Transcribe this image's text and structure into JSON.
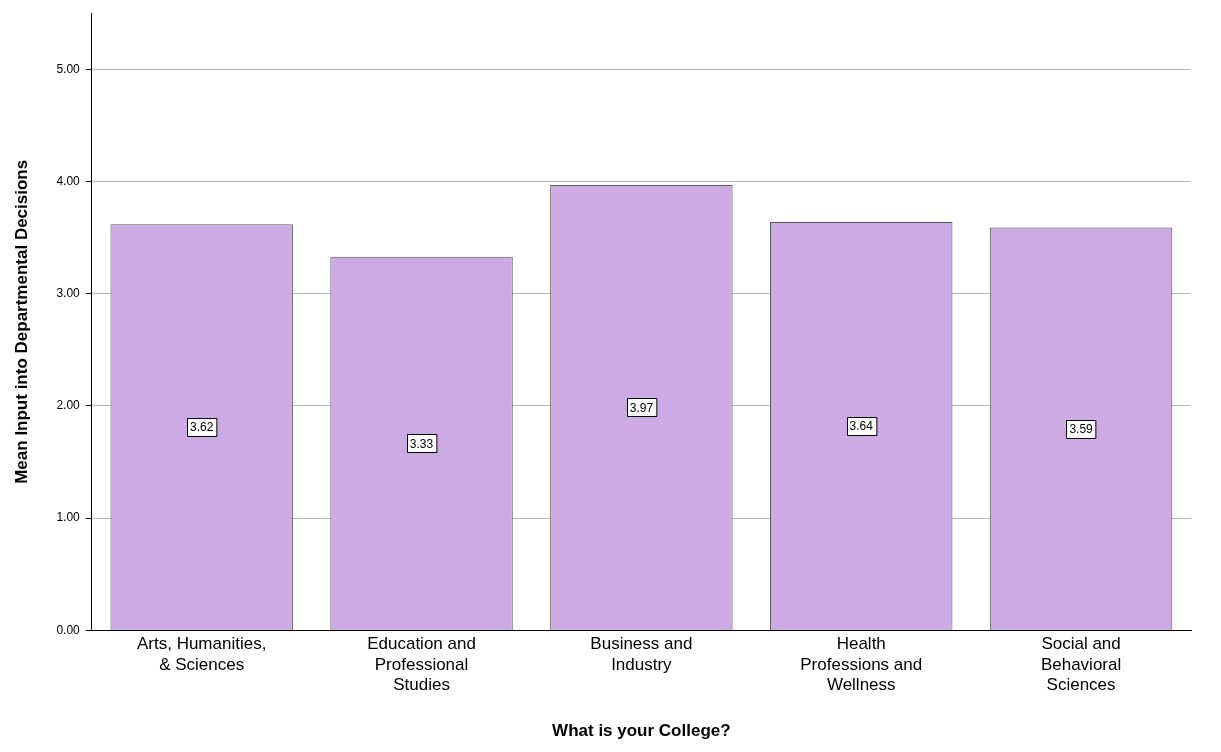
{
  "chart_data": {
    "type": "bar",
    "xlabel": "What is your College?",
    "ylabel": "Mean Input into Departmental Decisions",
    "categories": [
      "Arts, Humanities,\n& Sciences",
      "Education and\nProfessional\nStudies",
      "Business and\nIndustry",
      "Health\nProfessions and\nWellness",
      "Social and\nBehavioral\nSciences"
    ],
    "values": [
      3.62,
      3.33,
      3.97,
      3.64,
      3.59
    ],
    "color": "#ccaae4",
    "ylim": [
      0,
      5.5
    ],
    "yticks": [
      {
        "value": 0,
        "label": "0.00"
      },
      {
        "value": 1,
        "label": "1.00"
      },
      {
        "value": 2,
        "label": "2.00"
      },
      {
        "value": 3,
        "label": "3.00"
      },
      {
        "value": 4,
        "label": "4.00"
      },
      {
        "value": 5,
        "label": "5.00"
      }
    ],
    "grid": "y",
    "data_labels": true,
    "legend": false
  }
}
